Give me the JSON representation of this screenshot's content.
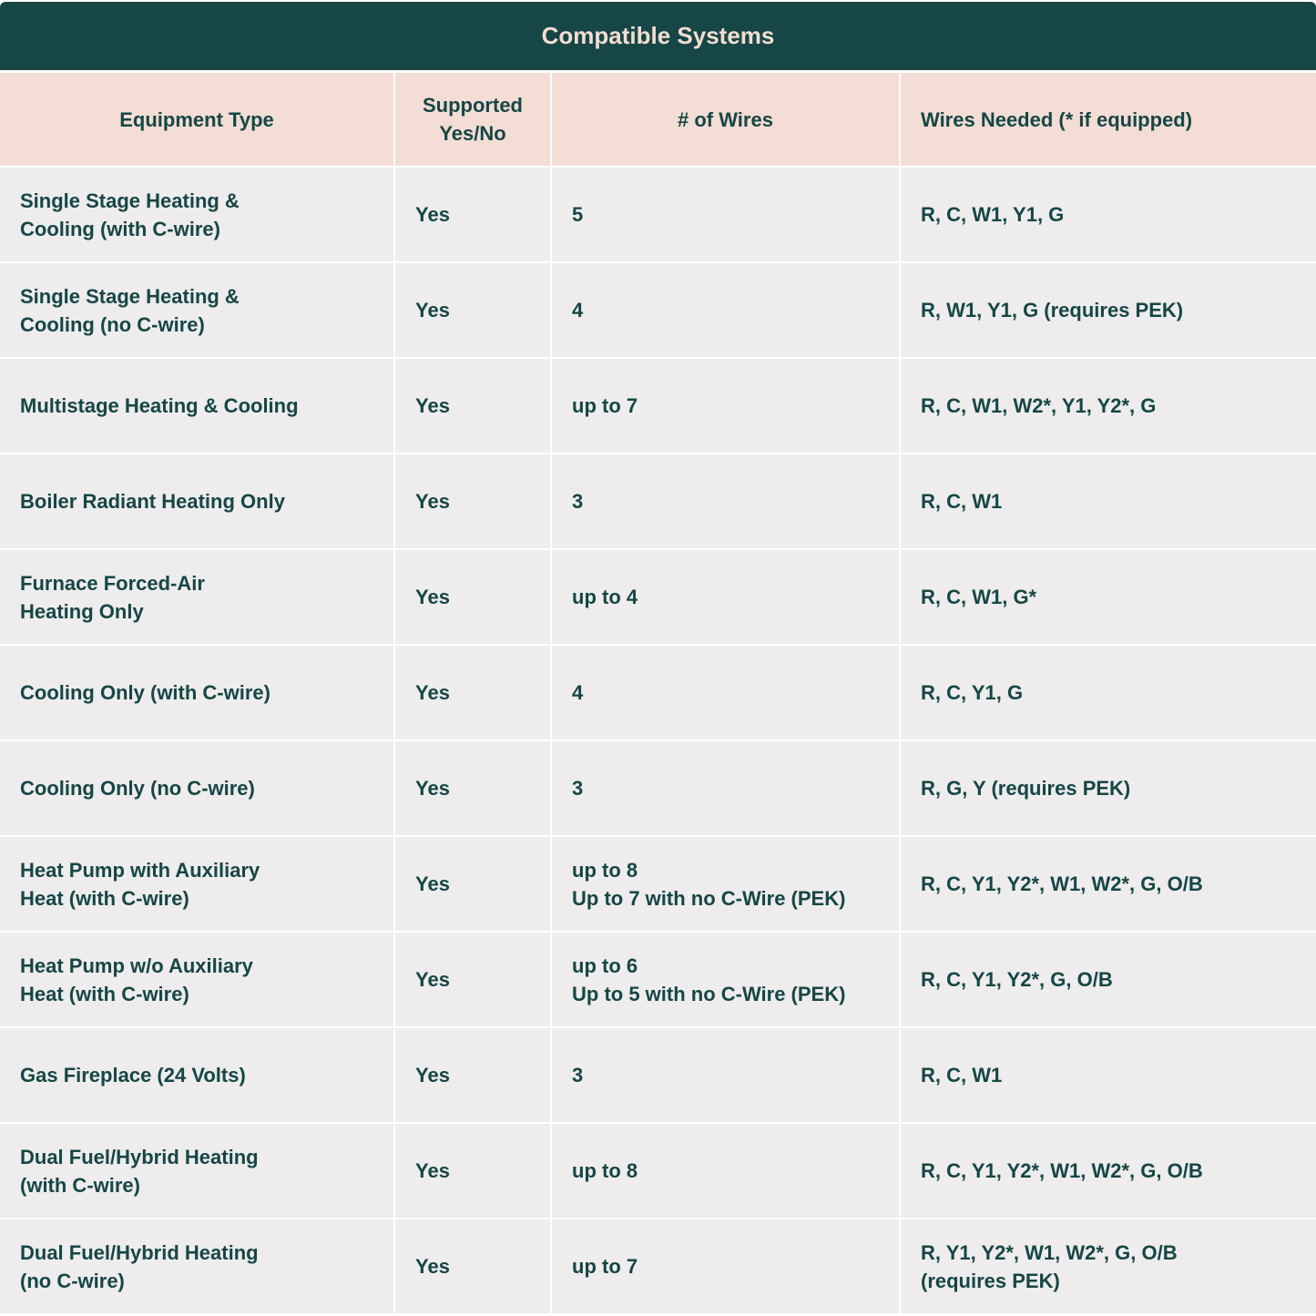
{
  "title": "Compatible Systems",
  "headers": [
    "Equipment Type",
    "Supported\nYes/No",
    "# of Wires",
    "Wires Needed (* if equipped)"
  ],
  "rows": [
    [
      "Single Stage Heating &\nCooling (with C-wire)",
      "Yes",
      "5",
      "R, C, W1, Y1, G"
    ],
    [
      "Single Stage Heating &\nCooling (no C-wire)",
      "Yes",
      "4",
      "R, W1, Y1, G (requires PEK)"
    ],
    [
      "Multistage Heating & Cooling",
      "Yes",
      "up to 7",
      "R, C, W1, W2*, Y1, Y2*, G"
    ],
    [
      "Boiler Radiant Heating Only",
      "Yes",
      "3",
      "R, C, W1"
    ],
    [
      "Furnace Forced-Air\n Heating Only",
      "Yes",
      "up to 4",
      "R, C, W1, G*"
    ],
    [
      "Cooling Only (with C-wire)",
      "Yes",
      "4",
      "R, C, Y1, G"
    ],
    [
      "Cooling Only (no C-wire)",
      "Yes",
      "3",
      "R, G, Y (requires PEK)"
    ],
    [
      "Heat Pump with Auxiliary\nHeat (with C-wire)",
      "Yes",
      "up to 8\nUp to 7 with no C-Wire (PEK)",
      "R, C, Y1, Y2*, W1, W2*, G, O/B"
    ],
    [
      "Heat Pump w/o Auxiliary\n Heat (with C-wire)",
      "Yes",
      "up to 6\nUp to 5 with no C-Wire (PEK)",
      "R, C, Y1, Y2*, G, O/B"
    ],
    [
      "Gas Fireplace (24 Volts)",
      "Yes",
      "3",
      "R, C, W1"
    ],
    [
      "Dual Fuel/Hybrid Heating\n(with C-wire)",
      "Yes",
      "up to 8",
      "R, C, Y1, Y2*, W1, W2*, G, O/B"
    ],
    [
      "Dual Fuel/Hybrid Heating\n(no C-wire)",
      "Yes",
      "up to 7",
      "R, Y1, Y2*, W1, W2*, G, O/B\n(requires PEK)"
    ]
  ],
  "colors": {
    "title_bg": "#164646",
    "header_bg": "#f3ddd4",
    "row_bg": "#eeecec",
    "text": "#164646"
  }
}
